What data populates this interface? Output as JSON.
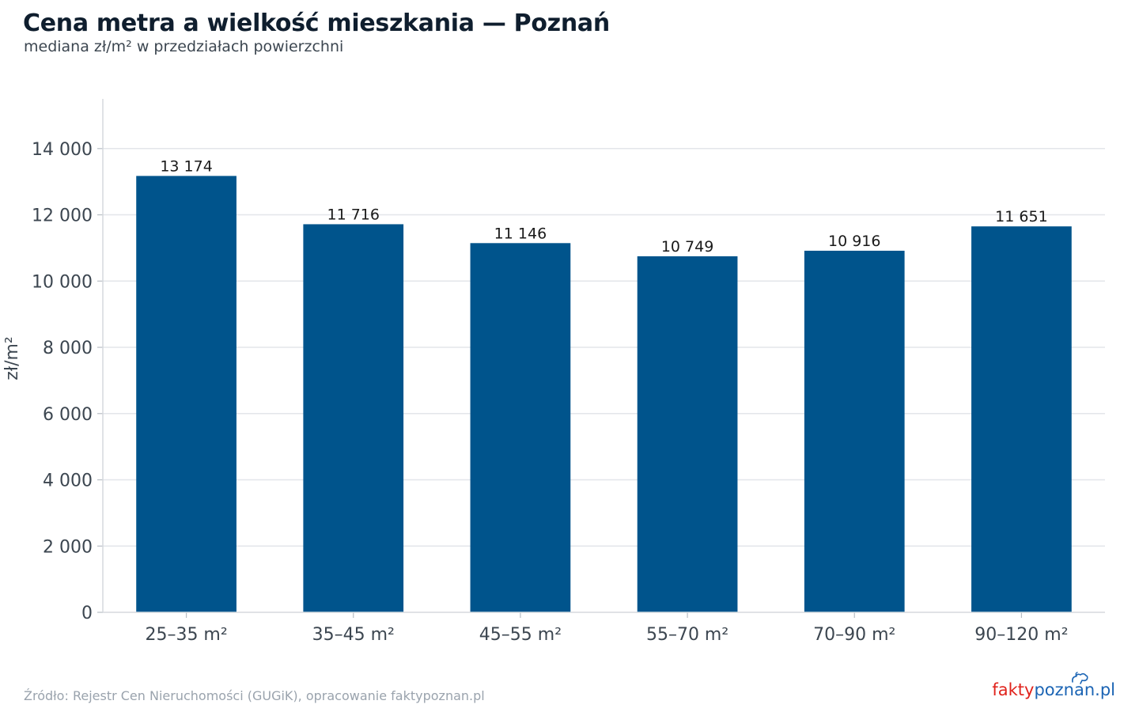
{
  "chart_data": {
    "type": "bar",
    "title": "Cena metra a wielkość mieszkania — Poznań",
    "subtitle": "mediana zł/m² w przedziałach powierzchni",
    "categories": [
      "25–35 m²",
      "35–45 m²",
      "45–55 m²",
      "55–70 m²",
      "70–90 m²",
      "90–120 m²"
    ],
    "values": [
      13174,
      11716,
      11146,
      10749,
      10916,
      11651
    ],
    "value_labels": [
      "13 174",
      "11 716",
      "11 146",
      "10 749",
      "10 916",
      "11 651"
    ],
    "ylabel": "zł/m²",
    "xlabel": "",
    "ylim": [
      0,
      15500
    ],
    "yticks": [
      0,
      2000,
      4000,
      6000,
      8000,
      10000,
      12000,
      14000
    ],
    "ytick_labels": [
      "0",
      "2 000",
      "4 000",
      "6 000",
      "8 000",
      "10 000",
      "12 000",
      "14 000"
    ],
    "grid": true,
    "bar_color": "#00548c"
  },
  "footer": {
    "source": "Źródło: Rejestr Cen Nieruchomości (GUGiK), opracowanie faktypoznan.pl"
  },
  "logo": {
    "part1": "fakty",
    "part2": "poznan",
    "part3": ".pl",
    "color1": "#e0231c",
    "color2": "#1b64b4",
    "color3": "#1b64b4"
  }
}
